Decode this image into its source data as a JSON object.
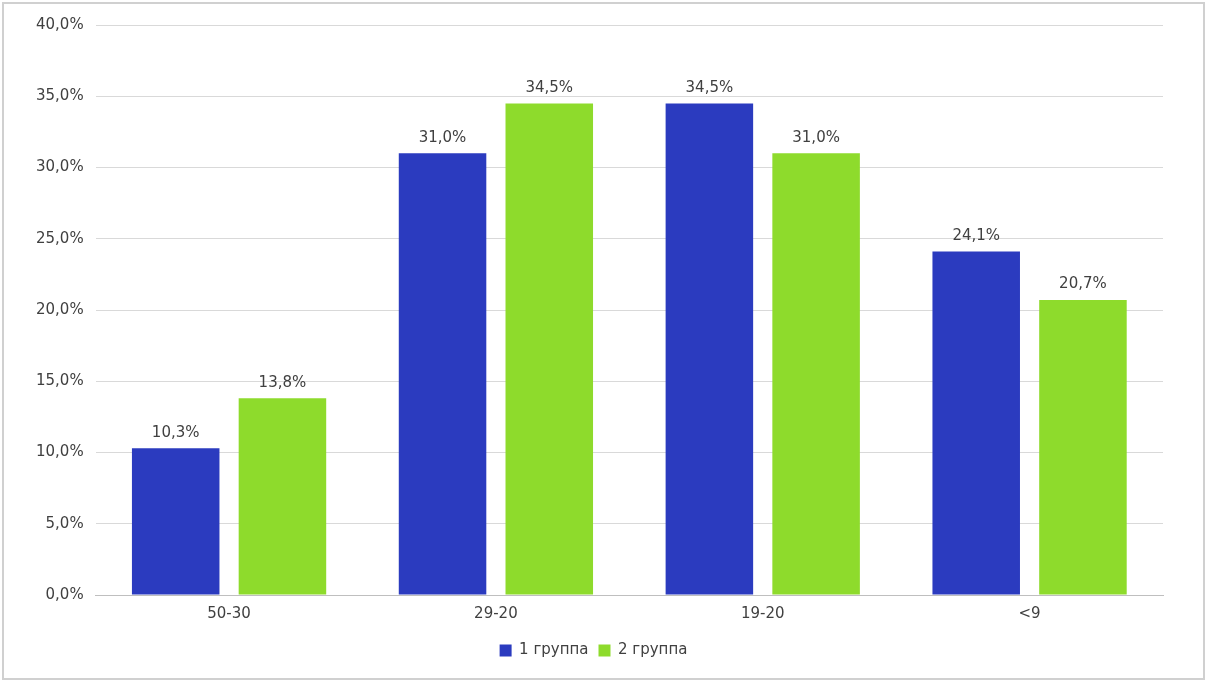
{
  "chart_data": {
    "type": "bar",
    "categories": [
      "50-30",
      "29-20",
      "19-20",
      "<9"
    ],
    "series": [
      {
        "name": "1 группа",
        "color": "#2b3bbf",
        "values": [
          10.3,
          31.0,
          34.5,
          24.1
        ],
        "value_labels": [
          "10,3%",
          "31,0%",
          "34,5%",
          "24,1%"
        ]
      },
      {
        "name": "2 группа",
        "color": "#8edb2c",
        "values": [
          13.8,
          34.5,
          31.0,
          20.7
        ],
        "value_labels": [
          "13,8%",
          "34,5%",
          "31,0%",
          "20,7%"
        ]
      }
    ],
    "ylim": [
      0,
      40
    ],
    "yticks": [
      {
        "value": 0,
        "label": "0,0%"
      },
      {
        "value": 5,
        "label": "5,0%"
      },
      {
        "value": 10,
        "label": "10,0%"
      },
      {
        "value": 15,
        "label": "15,0%"
      },
      {
        "value": 20,
        "label": "20,0%"
      },
      {
        "value": 25,
        "label": "25,0%"
      },
      {
        "value": 30,
        "label": "30,0%"
      },
      {
        "value": 35,
        "label": "35,0%"
      },
      {
        "value": 40,
        "label": "40,0%"
      }
    ],
    "grid": "y",
    "legend": "bottom"
  }
}
